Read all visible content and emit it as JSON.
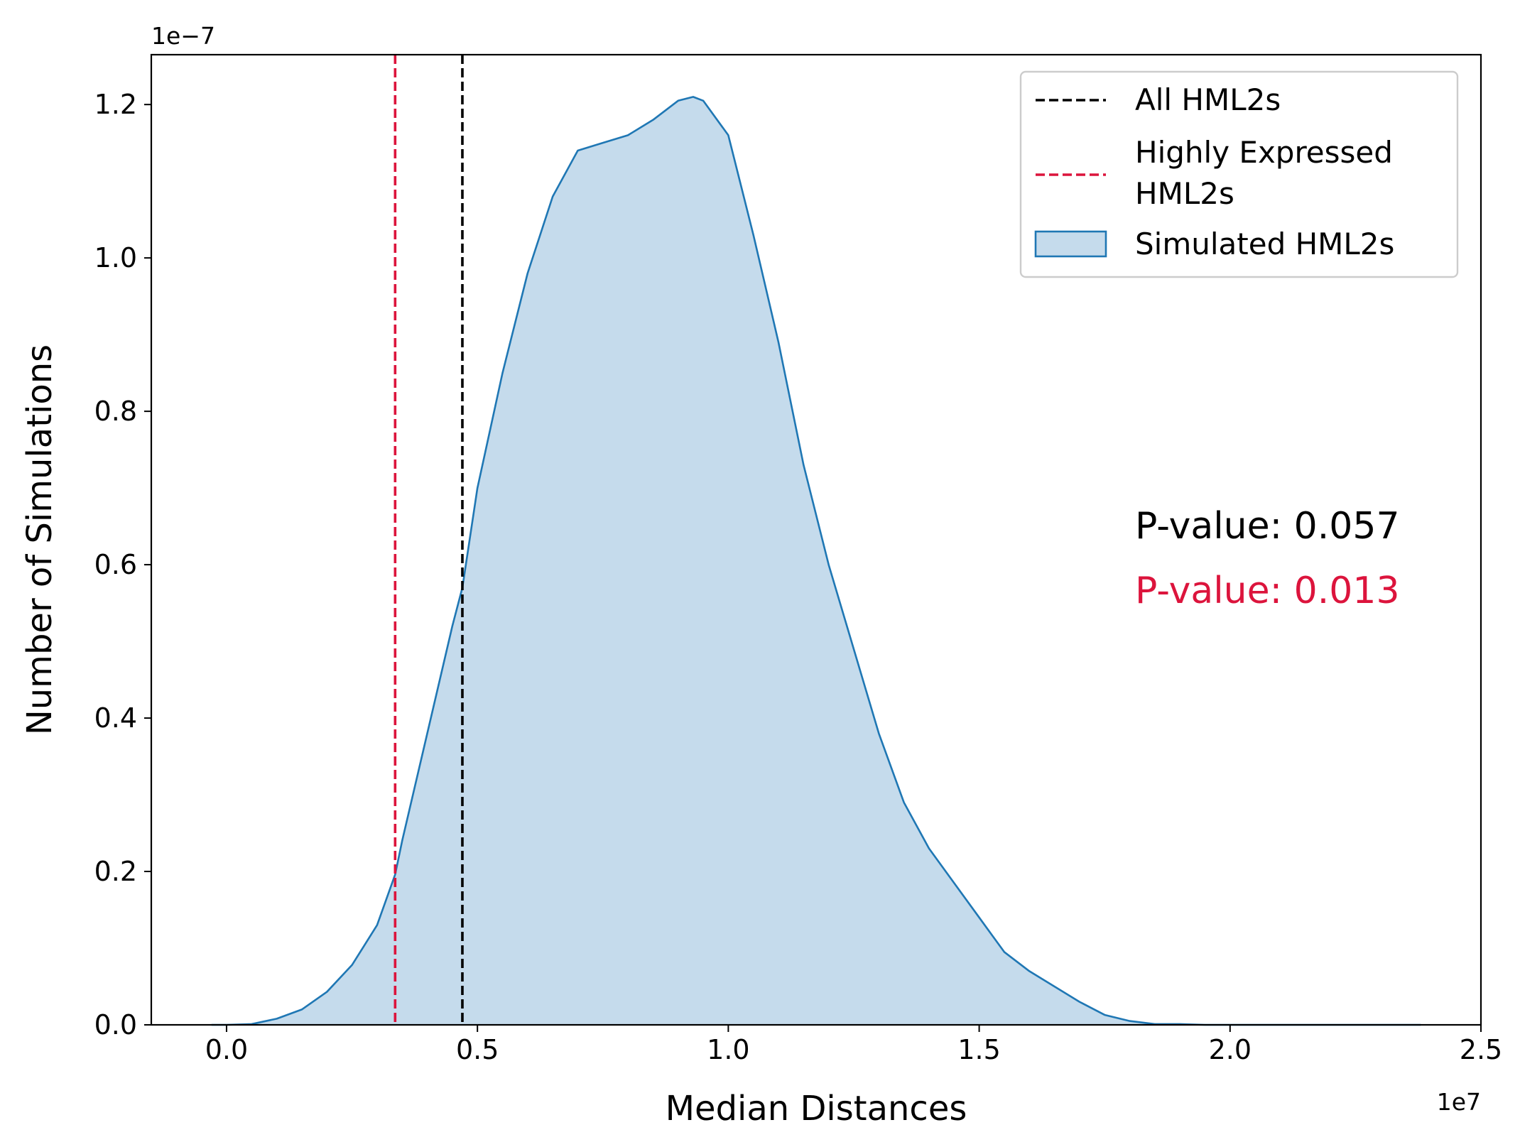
{
  "chart_data": {
    "type": "area",
    "xlabel": "Median Distances",
    "ylabel": "Number of Simulations",
    "x_offset_label": "1e7",
    "y_offset_label": "1e−7",
    "xlim": [
      -0.15,
      2.5
    ],
    "ylim": [
      0.0,
      1.265
    ],
    "x_ticks": [
      0.0,
      0.5,
      1.0,
      1.5,
      2.0,
      2.5
    ],
    "x_tick_labels": [
      "0.0",
      "0.5",
      "1.0",
      "1.5",
      "2.0",
      "2.5"
    ],
    "y_ticks": [
      0.0,
      0.2,
      0.4,
      0.6,
      0.8,
      1.0,
      1.2
    ],
    "y_tick_labels": [
      "0.0",
      "0.2",
      "0.4",
      "0.6",
      "0.8",
      "1.0",
      "1.2"
    ],
    "grid": false,
    "legend_position": "top-right",
    "series": [
      {
        "name": "Simulated HML2s",
        "kind": "kde-area",
        "line_color": "#1f77b4",
        "fill_color": "#c5dbec",
        "x": [
          -0.03,
          0.0,
          0.05,
          0.1,
          0.15,
          0.2,
          0.25,
          0.3,
          0.336,
          0.35,
          0.4,
          0.45,
          0.47,
          0.5,
          0.55,
          0.6,
          0.65,
          0.7,
          0.75,
          0.8,
          0.85,
          0.9,
          0.93,
          0.95,
          1.0,
          1.05,
          1.1,
          1.15,
          1.2,
          1.25,
          1.3,
          1.35,
          1.4,
          1.45,
          1.5,
          1.55,
          1.6,
          1.65,
          1.7,
          1.75,
          1.8,
          1.85,
          1.9,
          1.95,
          2.0,
          2.05,
          2.1,
          2.15,
          2.2,
          2.25,
          2.3,
          2.35,
          2.38
        ],
        "y": [
          0.0,
          0.0,
          0.001,
          0.008,
          0.02,
          0.043,
          0.078,
          0.13,
          0.196,
          0.24,
          0.38,
          0.52,
          0.57,
          0.7,
          0.85,
          0.98,
          1.08,
          1.14,
          1.15,
          1.16,
          1.18,
          1.205,
          1.21,
          1.205,
          1.16,
          1.03,
          0.89,
          0.73,
          0.6,
          0.49,
          0.38,
          0.29,
          0.23,
          0.185,
          0.14,
          0.095,
          0.07,
          0.05,
          0.03,
          0.013,
          0.005,
          0.001,
          0.001,
          0.0,
          0.0,
          0.0,
          0.0,
          0.0,
          0.0,
          0.0,
          0.0,
          0.0,
          0.0
        ]
      },
      {
        "name": "All HML2s",
        "kind": "vline",
        "x": 0.47,
        "color": "#000000"
      },
      {
        "name": "Highly Expressed HML2s",
        "kind": "vline",
        "x": 0.336,
        "color": "#dc143c"
      }
    ],
    "legend": [
      {
        "label_lines": [
          "All HML2s"
        ],
        "kind": "dash",
        "color": "#000000"
      },
      {
        "label_lines": [
          "Highly Expressed",
          "HML2s"
        ],
        "kind": "dash",
        "color": "#dc143c"
      },
      {
        "label_lines": [
          "Simulated HML2s"
        ],
        "kind": "patch",
        "color": "#1f77b4",
        "fill": "#c5dbec"
      }
    ],
    "annotations": [
      {
        "text": "P-value: 0.057",
        "color": "#000000"
      },
      {
        "text": "P-value: 0.013",
        "color": "#dc143c"
      }
    ]
  }
}
